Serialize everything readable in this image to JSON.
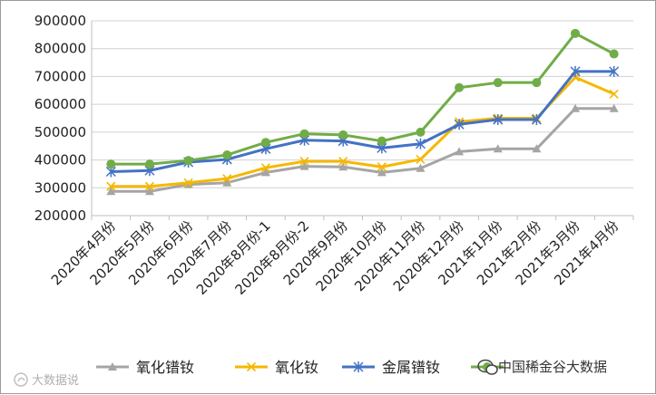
{
  "chart_data": {
    "type": "line",
    "categories": [
      "2020年4月份",
      "2020年5月份",
      "2020年6月份",
      "2020年7月份",
      "2020年8月份-1",
      "2020年8月份-2",
      "2020年9月份",
      "2020年10月份",
      "2020年11月份",
      "2020年12月份",
      "2021年1月份",
      "2021年2月份",
      "2021年3月份",
      "2021年4月份"
    ],
    "ylim": [
      200000,
      900000
    ],
    "yticks": [
      200000,
      300000,
      400000,
      500000,
      600000,
      700000,
      800000,
      900000
    ],
    "grid": true,
    "legend_position": "bottom",
    "series": [
      {
        "name": "氧化镨钕",
        "color": "#a5a5a5",
        "marker": "triangle",
        "values": [
          287000,
          287000,
          312000,
          318000,
          355000,
          377000,
          375000,
          355000,
          370000,
          430000,
          440000,
          440000,
          585000,
          585000
        ]
      },
      {
        "name": "氧化钕",
        "color": "#f5b800",
        "marker": "x",
        "values": [
          305000,
          305000,
          318000,
          333000,
          372000,
          395000,
          395000,
          375000,
          402000,
          537000,
          550000,
          550000,
          697000,
          637000
        ]
      },
      {
        "name": "金属镨钕",
        "color": "#4472c4",
        "marker": "star",
        "values": [
          358000,
          362000,
          392000,
          402000,
          440000,
          471000,
          468000,
          443000,
          458000,
          528000,
          545000,
          545000,
          718000,
          718000
        ]
      },
      {
        "name": "",
        "color": "#70ad47",
        "marker": "circle",
        "values": [
          385000,
          385000,
          398000,
          418000,
          463000,
          494000,
          490000,
          468000,
          500000,
          660000,
          678000,
          678000,
          855000,
          781000
        ]
      }
    ]
  },
  "watermark": {
    "account": "中国稀金谷大数据",
    "brand": "大数据说"
  }
}
